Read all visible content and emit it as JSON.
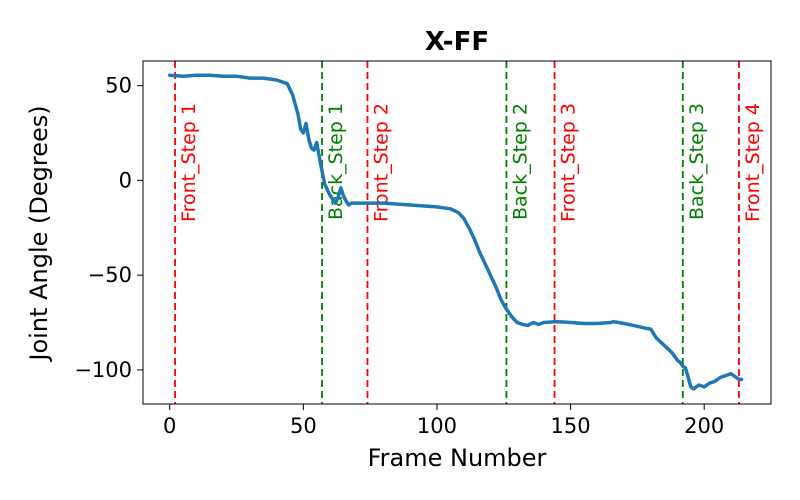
{
  "chart_data": {
    "type": "line",
    "title": "X-FF",
    "xlabel": "Frame Number",
    "ylabel": "Joint Angle (Degrees)",
    "xlim": [
      -10,
      225
    ],
    "ylim": [
      -118,
      63
    ],
    "xticks": [
      0,
      50,
      100,
      150,
      200
    ],
    "yticks": [
      50,
      0,
      -50,
      -100
    ],
    "xtick_labels": [
      "0",
      "50",
      "100",
      "150",
      "200"
    ],
    "ytick_labels": [
      "50",
      "0",
      "−50",
      "−100"
    ],
    "grid": false,
    "series": [
      {
        "color": "#1f77b4",
        "x": [
          0,
          5,
          10,
          15,
          20,
          25,
          30,
          35,
          40,
          44,
          46,
          47,
          48,
          49,
          50,
          51,
          52,
          53,
          54,
          55,
          56,
          57,
          58,
          59,
          60,
          61,
          62,
          63,
          64,
          65,
          66,
          67,
          68,
          70,
          75,
          80,
          90,
          100,
          105,
          108,
          110,
          112,
          114,
          116,
          118,
          120,
          122,
          124,
          126,
          128,
          130,
          132,
          134,
          136,
          138,
          140,
          145,
          150,
          155,
          160,
          165,
          166,
          170,
          175,
          178,
          180,
          182,
          185,
          188,
          190,
          191,
          192,
          193,
          194,
          195,
          196,
          197,
          198,
          200,
          202,
          204,
          206,
          208,
          210,
          212,
          213,
          214
        ],
        "y": [
          55.5,
          55,
          55.5,
          55.5,
          55,
          55,
          54,
          54,
          53,
          51,
          45,
          40,
          35,
          27,
          25,
          30,
          22,
          17,
          16,
          20,
          12,
          5,
          -2,
          -5,
          -8,
          -10,
          -12,
          -9,
          -4,
          -8,
          -11,
          -13,
          -12,
          -12,
          -12,
          -12,
          -13,
          -14,
          -15,
          -17,
          -20,
          -25,
          -31,
          -38,
          -44,
          -50,
          -56,
          -63,
          -68,
          -72,
          -75,
          -76,
          -76.5,
          -75,
          -76,
          -75,
          -74.5,
          -75,
          -75.5,
          -75.5,
          -75,
          -74.5,
          -75.5,
          -77,
          -78,
          -78.5,
          -83,
          -87,
          -91,
          -95,
          -96,
          -98,
          -99,
          -104,
          -109,
          -110,
          -109,
          -108,
          -109,
          -107,
          -106,
          -104,
          -103,
          -102,
          -104,
          -105,
          -105
        ]
      }
    ],
    "markers": [
      {
        "x": 2,
        "label": "Front_Step 1",
        "color": "#ff0000"
      },
      {
        "x": 57,
        "label": "Back_Step 1",
        "color": "#008000"
      },
      {
        "x": 74,
        "label": "Front_Step 2",
        "color": "#ff0000"
      },
      {
        "x": 126,
        "label": "Back_Step 2",
        "color": "#008000"
      },
      {
        "x": 144,
        "label": "Front_Step 3",
        "color": "#ff0000"
      },
      {
        "x": 192,
        "label": "Back_Step 3",
        "color": "#008000"
      },
      {
        "x": 213,
        "label": "Front_Step 4",
        "color": "#ff0000"
      }
    ]
  }
}
